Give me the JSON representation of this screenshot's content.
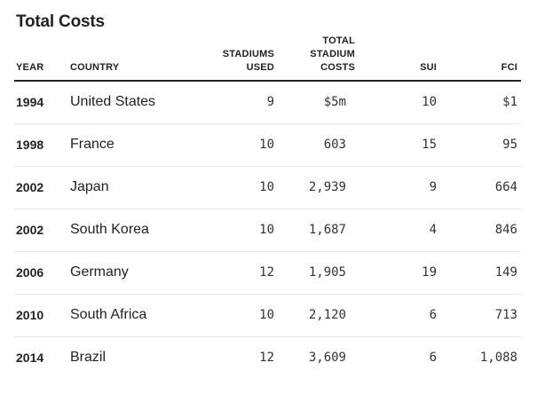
{
  "title": "Total Costs",
  "columns": {
    "year": "YEAR",
    "country": "COUNTRY",
    "stadiums_line1": "STADIUMS",
    "stadiums_line2": "USED",
    "costs_line1": "TOTAL",
    "costs_line2": "STADIUM",
    "costs_line3": "COSTS",
    "sui": "SUI",
    "fci": "FCI"
  },
  "rows": [
    {
      "year": "1994",
      "country": "United States",
      "stadiums": "9",
      "costs": "$5m",
      "sui": "10",
      "fci": "$1"
    },
    {
      "year": "1998",
      "country": "France",
      "stadiums": "10",
      "costs": "603",
      "sui": "15",
      "fci": "95"
    },
    {
      "year": "2002",
      "country": "Japan",
      "stadiums": "10",
      "costs": "2,939",
      "sui": "9",
      "fci": "664"
    },
    {
      "year": "2002",
      "country": "South Korea",
      "stadiums": "10",
      "costs": "1,687",
      "sui": "4",
      "fci": "846"
    },
    {
      "year": "2006",
      "country": "Germany",
      "stadiums": "12",
      "costs": "1,905",
      "sui": "19",
      "fci": "149"
    },
    {
      "year": "2010",
      "country": "South Africa",
      "stadiums": "10",
      "costs": "2,120",
      "sui": "6",
      "fci": "713"
    },
    {
      "year": "2014",
      "country": "Brazil",
      "stadiums": "12",
      "costs": "3,609",
      "sui": "6",
      "fci": "1,088"
    }
  ]
}
